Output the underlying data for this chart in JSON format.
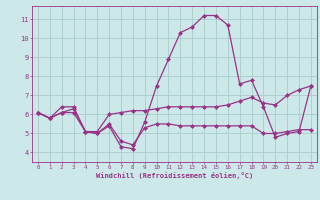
{
  "xlabel": "Windchill (Refroidissement éolien,°C)",
  "background_color": "#cce8e8",
  "grid_color": "#aacccc",
  "line_color": "#993388",
  "x_hours": [
    0,
    1,
    2,
    3,
    4,
    5,
    6,
    7,
    8,
    9,
    10,
    11,
    12,
    13,
    14,
    15,
    16,
    17,
    18,
    19,
    20,
    21,
    22,
    23
  ],
  "ylim": [
    3.5,
    11.7
  ],
  "xlim": [
    -0.5,
    23.5
  ],
  "yticks": [
    4,
    5,
    6,
    7,
    8,
    9,
    10,
    11
  ],
  "xticks": [
    0,
    1,
    2,
    3,
    4,
    5,
    6,
    7,
    8,
    9,
    10,
    11,
    12,
    13,
    14,
    15,
    16,
    17,
    18,
    19,
    20,
    21,
    22,
    23
  ],
  "series1": [
    6.1,
    5.8,
    6.4,
    6.4,
    5.1,
    5.0,
    5.4,
    4.3,
    4.2,
    5.6,
    7.5,
    8.9,
    10.3,
    10.6,
    11.2,
    11.2,
    10.7,
    7.6,
    7.8,
    6.4,
    4.8,
    5.0,
    5.1,
    7.5
  ],
  "series2": [
    6.1,
    5.8,
    6.1,
    6.3,
    5.1,
    5.1,
    6.0,
    6.1,
    6.2,
    6.2,
    6.3,
    6.4,
    6.4,
    6.4,
    6.4,
    6.4,
    6.5,
    6.7,
    6.9,
    6.6,
    6.5,
    7.0,
    7.3,
    7.5
  ],
  "series3": [
    6.1,
    5.8,
    6.1,
    6.1,
    5.1,
    5.0,
    5.5,
    4.6,
    4.4,
    5.3,
    5.5,
    5.5,
    5.4,
    5.4,
    5.4,
    5.4,
    5.4,
    5.4,
    5.4,
    5.0,
    5.0,
    5.1,
    5.2,
    5.2
  ],
  "marker_size": 2.5,
  "line_width": 0.9
}
